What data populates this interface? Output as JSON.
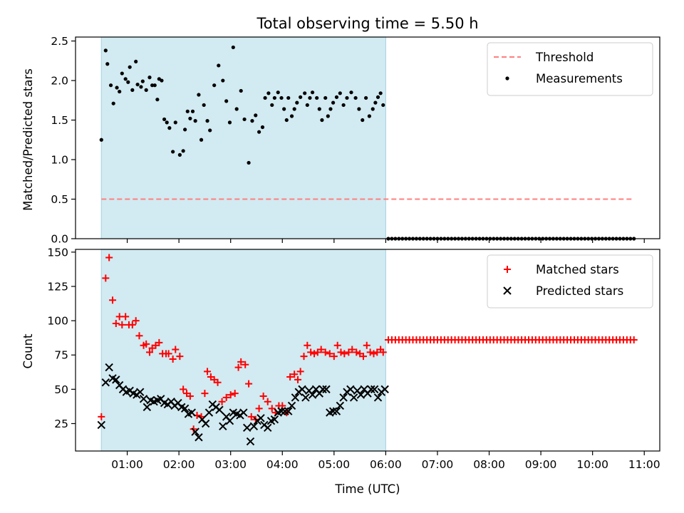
{
  "chart_data": {
    "title": "Total observing time = 5.50 h",
    "x_tick_labels": [
      "01:00",
      "02:00",
      "03:00",
      "04:00",
      "05:00",
      "06:00",
      "07:00",
      "08:00",
      "09:00",
      "10:00",
      "11:00"
    ],
    "x_ticks_hours": [
      1,
      2,
      3,
      4,
      5,
      6,
      7,
      8,
      9,
      10,
      11
    ],
    "xlabel": "Time (UTC)",
    "xlim_hours": [
      0.0,
      11.3
    ],
    "shaded_interval_hours": [
      0.5,
      6.0
    ],
    "shade_color": "#add8e6",
    "panels": [
      {
        "type": "scatter",
        "ylabel": "Matched/Predicted stars",
        "ylim": [
          0,
          2.55
        ],
        "y_ticks": [
          0.0,
          0.5,
          1.0,
          1.5,
          2.0,
          2.5
        ],
        "y_tick_labels": [
          "0.0",
          "0.5",
          "1.0",
          "1.5",
          "2.0",
          "2.5"
        ],
        "legend_position": "top-right",
        "threshold": {
          "name": "Threshold",
          "y": 0.5,
          "x_range_hours": [
            0.5,
            10.8
          ],
          "color": "#ff7f7f"
        },
        "series": [
          {
            "name": "Measurements",
            "color": "#000000",
            "x": [
              0.5,
              0.583,
              0.617,
              0.683,
              0.733,
              0.8,
              0.85,
              0.9,
              0.967,
              1.017,
              1.05,
              1.1,
              1.167,
              1.2,
              1.267,
              1.3,
              1.367,
              1.433,
              1.483,
              1.533,
              1.583,
              1.617,
              1.667,
              1.717,
              1.767,
              1.817,
              1.883,
              1.933,
              2.017,
              2.083,
              2.117,
              2.167,
              2.217,
              2.267,
              2.317,
              2.383,
              2.433,
              2.483,
              2.55,
              2.6,
              2.683,
              2.767,
              2.85,
              2.917,
              2.983,
              3.05,
              3.117,
              3.2,
              3.267,
              3.35,
              3.417,
              3.483,
              3.55,
              3.617,
              3.667,
              3.733,
              3.8,
              3.85,
              3.917,
              3.983,
              4.033,
              4.083,
              4.117,
              4.183,
              4.233,
              4.283,
              4.35,
              4.433,
              4.483,
              4.533,
              4.583,
              4.667,
              4.717,
              4.767,
              4.833,
              4.883,
              4.933,
              4.983,
              5.05,
              5.117,
              5.183,
              5.25,
              5.333,
              5.417,
              5.483,
              5.55,
              5.617,
              5.683,
              5.75,
              5.8,
              5.85,
              5.9,
              5.95
            ],
            "y": [
              1.25,
              2.38,
              2.21,
              1.94,
              1.71,
              1.91,
              1.86,
              2.09,
              2.02,
              1.98,
              2.17,
              1.88,
              2.24,
              1.95,
              1.92,
              1.99,
              1.88,
              2.04,
              1.94,
              1.94,
              1.76,
              2.02,
              2.0,
              1.51,
              1.47,
              1.4,
              1.1,
              1.47,
              1.06,
              1.11,
              1.38,
              1.61,
              1.52,
              1.61,
              1.49,
              1.82,
              1.25,
              1.69,
              1.49,
              1.37,
              1.94,
              2.19,
              2.0,
              1.74,
              1.47,
              2.42,
              1.64,
              1.87,
              1.51,
              0.96,
              1.49,
              1.56,
              1.35,
              1.41,
              1.78,
              1.84,
              1.69,
              1.78,
              1.85,
              1.78,
              1.64,
              1.5,
              1.78,
              1.55,
              1.64,
              1.72,
              1.79,
              1.84,
              1.69,
              1.78,
              1.85,
              1.78,
              1.64,
              1.5,
              1.78,
              1.55,
              1.64,
              1.72,
              1.79,
              1.84,
              1.69,
              1.78,
              1.85,
              1.78,
              1.64,
              1.5,
              1.78,
              1.55,
              1.64,
              1.72,
              1.79,
              1.84,
              1.69
            ]
          },
          {
            "name": "",
            "color": "#000000",
            "x_range_hours": [
              6.05,
              10.8
            ],
            "count": 71,
            "y": 0.0
          }
        ]
      },
      {
        "type": "scatter",
        "ylabel": "Count",
        "ylim": [
          5,
          152
        ],
        "y_ticks": [
          25,
          50,
          75,
          100,
          125,
          150
        ],
        "y_tick_labels": [
          "25",
          "50",
          "75",
          "100",
          "125",
          "150"
        ],
        "legend_position": "top-right",
        "series": [
          {
            "name": "Matched stars",
            "color": "#ff0000",
            "marker": "plus",
            "x": [
              0.5,
              0.583,
              0.65,
              0.717,
              0.783,
              0.85,
              0.9,
              0.967,
              1.033,
              1.1,
              1.167,
              1.233,
              1.317,
              1.367,
              1.433,
              1.483,
              1.55,
              1.617,
              1.683,
              1.75,
              1.8,
              1.883,
              1.933,
              2.017,
              2.083,
              2.15,
              2.217,
              2.283,
              2.35,
              2.433,
              2.5,
              2.55,
              2.617,
              2.683,
              2.75,
              2.833,
              2.917,
              3.0,
              3.083,
              3.15,
              3.2,
              3.283,
              3.35,
              3.4,
              3.483,
              3.55,
              3.633,
              3.717,
              3.8,
              3.867,
              3.933,
              4.0,
              4.083,
              4.15,
              4.233,
              4.3,
              4.35,
              4.417,
              4.483,
              4.55,
              4.617,
              4.683,
              4.75,
              4.833,
              4.917,
              5.0,
              5.067,
              5.133,
              5.2,
              5.283,
              5.35,
              5.433,
              5.5,
              5.567,
              5.633,
              5.7,
              5.767,
              5.833,
              5.9,
              5.95
            ],
            "y": [
              30,
              131,
              146,
              115,
              98,
              103,
              97,
              103,
              97,
              97,
              100,
              89,
              82,
              83,
              77,
              80,
              82,
              84,
              76,
              76,
              76,
              72,
              79,
              74,
              50,
              47,
              45,
              21,
              31,
              30,
              47,
              63,
              59,
              57,
              55,
              41,
              44,
              46,
              47,
              66,
              70,
              68,
              54,
              30,
              28,
              36,
              45,
              41,
              36,
              33,
              38,
              38,
              33,
              59,
              61,
              57,
              63,
              74,
              82,
              77,
              76,
              77,
              79,
              77,
              76,
              74,
              82,
              77,
              76,
              77,
              79,
              77,
              76,
              74,
              82,
              77,
              76,
              77,
              79,
              77
            ]
          },
          {
            "name": "Predicted stars",
            "color": "#000000",
            "marker": "x",
            "x": [
              0.5,
              0.583,
              0.65,
              0.717,
              0.783,
              0.85,
              0.917,
              0.983,
              1.05,
              1.117,
              1.183,
              1.25,
              1.317,
              1.383,
              1.45,
              1.517,
              1.583,
              1.65,
              1.717,
              1.783,
              1.85,
              1.917,
              1.983,
              2.05,
              2.117,
              2.183,
              2.25,
              2.317,
              2.383,
              2.45,
              2.517,
              2.583,
              2.65,
              2.717,
              2.783,
              2.85,
              2.917,
              2.983,
              3.05,
              3.117,
              3.183,
              3.25,
              3.317,
              3.383,
              3.45,
              3.517,
              3.583,
              3.65,
              3.717,
              3.783,
              3.85,
              3.917,
              3.983,
              4.05,
              4.117,
              4.183,
              4.25,
              4.317,
              4.383,
              4.45,
              4.517,
              4.583,
              4.65,
              4.717,
              4.783,
              4.85,
              4.917,
              4.983,
              5.05,
              5.117,
              5.183,
              5.25,
              5.317,
              5.383,
              5.45,
              5.517,
              5.583,
              5.65,
              5.717,
              5.783,
              5.85,
              5.917,
              5.983
            ],
            "y": [
              24,
              55,
              66,
              58,
              57,
              53,
              50,
              48,
              49,
              47,
              46,
              48,
              43,
              37,
              42,
              41,
              42,
              43,
              40,
              39,
              41,
              38,
              40,
              37,
              36,
              32,
              33,
              19,
              15,
              28,
              25,
              33,
              39,
              37,
              35,
              23,
              30,
              27,
              33,
              32,
              31,
              33,
              22,
              12,
              23,
              27,
              29,
              24,
              22,
              27,
              28,
              33,
              34,
              34,
              34,
              38,
              44,
              48,
              50,
              44,
              49,
              46,
              50,
              47,
              50,
              50,
              33,
              34,
              34,
              38,
              44,
              48,
              50,
              44,
              49,
              46,
              50,
              47,
              50,
              50,
              44,
              48,
              50
            ]
          },
          {
            "name": "",
            "color": "#ff0000",
            "marker": "plus",
            "x_range_hours": [
              6.05,
              10.8
            ],
            "count": 71,
            "y": 86
          }
        ]
      }
    ]
  }
}
